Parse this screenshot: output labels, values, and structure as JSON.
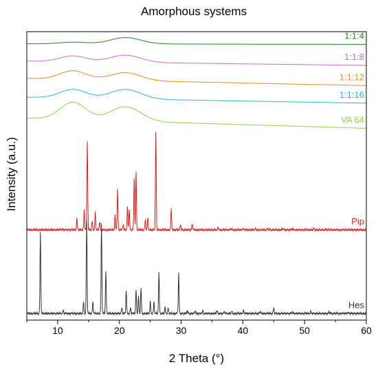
{
  "chart_data": {
    "type": "line",
    "title": "Amorphous systems",
    "xlabel": "2 Theta (°)",
    "ylabel": "Intensity (a.u.)",
    "xlim": [
      5,
      60
    ],
    "xticks": [
      10,
      20,
      30,
      40,
      50,
      60
    ],
    "y_ticks_shown": false,
    "grid": false,
    "legend": "labels placed at the right end of each trace",
    "series": [
      {
        "name": "1:1:4",
        "color": "#1a8a1a",
        "kind": "amorphous",
        "baseline_start": 0.958,
        "baseline_end": 0.956,
        "halos": [
          [
            12.5,
            0.006,
            3.0
          ],
          [
            21.0,
            0.022,
            3.5
          ]
        ]
      },
      {
        "name": "1:1:8",
        "color": "#c86ad8",
        "kind": "amorphous",
        "baseline_start": 0.898,
        "baseline_end": 0.883,
        "halos": [
          [
            12.5,
            0.02,
            3.0
          ],
          [
            21.0,
            0.025,
            3.5
          ]
        ]
      },
      {
        "name": "1:1:12",
        "color": "#f08a1a",
        "kind": "amorphous",
        "baseline_start": 0.838,
        "baseline_end": 0.813,
        "halos": [
          [
            12.5,
            0.03,
            3.0
          ],
          [
            21.0,
            0.027,
            3.5
          ]
        ]
      },
      {
        "name": "1:1:16",
        "color": "#27b4e0",
        "kind": "amorphous",
        "baseline_start": 0.773,
        "baseline_end": 0.752,
        "halos": [
          [
            12.5,
            0.03,
            3.0
          ],
          [
            21.0,
            0.033,
            3.5
          ]
        ]
      },
      {
        "name": "VA 64",
        "color": "#88d840",
        "kind": "amorphous",
        "baseline_start": 0.7,
        "baseline_end": 0.665,
        "halos": [
          [
            12.5,
            0.06,
            3.0
          ],
          [
            21.0,
            0.05,
            3.5
          ]
        ]
      },
      {
        "name": "Pip",
        "color": "#e31a1a",
        "kind": "crystalline",
        "baseline": 0.313,
        "peaks": [
          [
            10.7,
            0.005
          ],
          [
            13.1,
            0.04
          ],
          [
            14.3,
            0.07
          ],
          [
            14.8,
            0.31
          ],
          [
            15.6,
            0.03
          ],
          [
            16.1,
            0.06
          ],
          [
            16.8,
            0.03
          ],
          [
            19.3,
            0.05
          ],
          [
            19.7,
            0.14
          ],
          [
            20.6,
            0.02
          ],
          [
            21.3,
            0.08
          ],
          [
            21.6,
            0.07
          ],
          [
            22.4,
            0.18
          ],
          [
            22.7,
            0.2
          ],
          [
            24.2,
            0.035
          ],
          [
            24.6,
            0.04
          ],
          [
            25.9,
            0.34
          ],
          [
            28.4,
            0.07
          ],
          [
            29.9,
            0.02
          ],
          [
            31.8,
            0.02
          ],
          [
            36.0,
            0.01
          ],
          [
            38.0,
            0.005
          ],
          [
            40.0,
            0.005
          ],
          [
            42.0,
            0.005
          ],
          [
            44.0,
            0.005
          ],
          [
            46.5,
            0.005
          ],
          [
            48.0,
            0.004
          ],
          [
            51.5,
            0.006
          ],
          [
            53.5,
            0.004
          ]
        ]
      },
      {
        "name": "Hes",
        "color": "#333333",
        "kind": "crystalline",
        "baseline": 0.023,
        "peaks": [
          [
            7.2,
            0.28
          ],
          [
            10.9,
            0.01
          ],
          [
            14.2,
            0.04
          ],
          [
            14.7,
            0.32
          ],
          [
            15.7,
            0.04
          ],
          [
            17.1,
            0.31
          ],
          [
            17.8,
            0.15
          ],
          [
            20.4,
            0.02
          ],
          [
            21.1,
            0.08
          ],
          [
            21.8,
            0.02
          ],
          [
            22.7,
            0.08
          ],
          [
            23.1,
            0.06
          ],
          [
            23.5,
            0.09
          ],
          [
            25.0,
            0.04
          ],
          [
            25.6,
            0.04
          ],
          [
            26.4,
            0.14
          ],
          [
            27.4,
            0.02
          ],
          [
            27.9,
            0.02
          ],
          [
            29.6,
            0.14
          ],
          [
            31.0,
            0.01
          ],
          [
            32.3,
            0.01
          ],
          [
            33.5,
            0.01
          ],
          [
            35.8,
            0.01
          ],
          [
            37.0,
            0.008
          ],
          [
            38.2,
            0.008
          ],
          [
            40.1,
            0.01
          ],
          [
            42.8,
            0.008
          ],
          [
            45.0,
            0.02
          ],
          [
            48.0,
            0.006
          ],
          [
            51.0,
            0.006
          ],
          [
            54.0,
            0.006
          ],
          [
            57.0,
            0.005
          ]
        ]
      }
    ]
  }
}
